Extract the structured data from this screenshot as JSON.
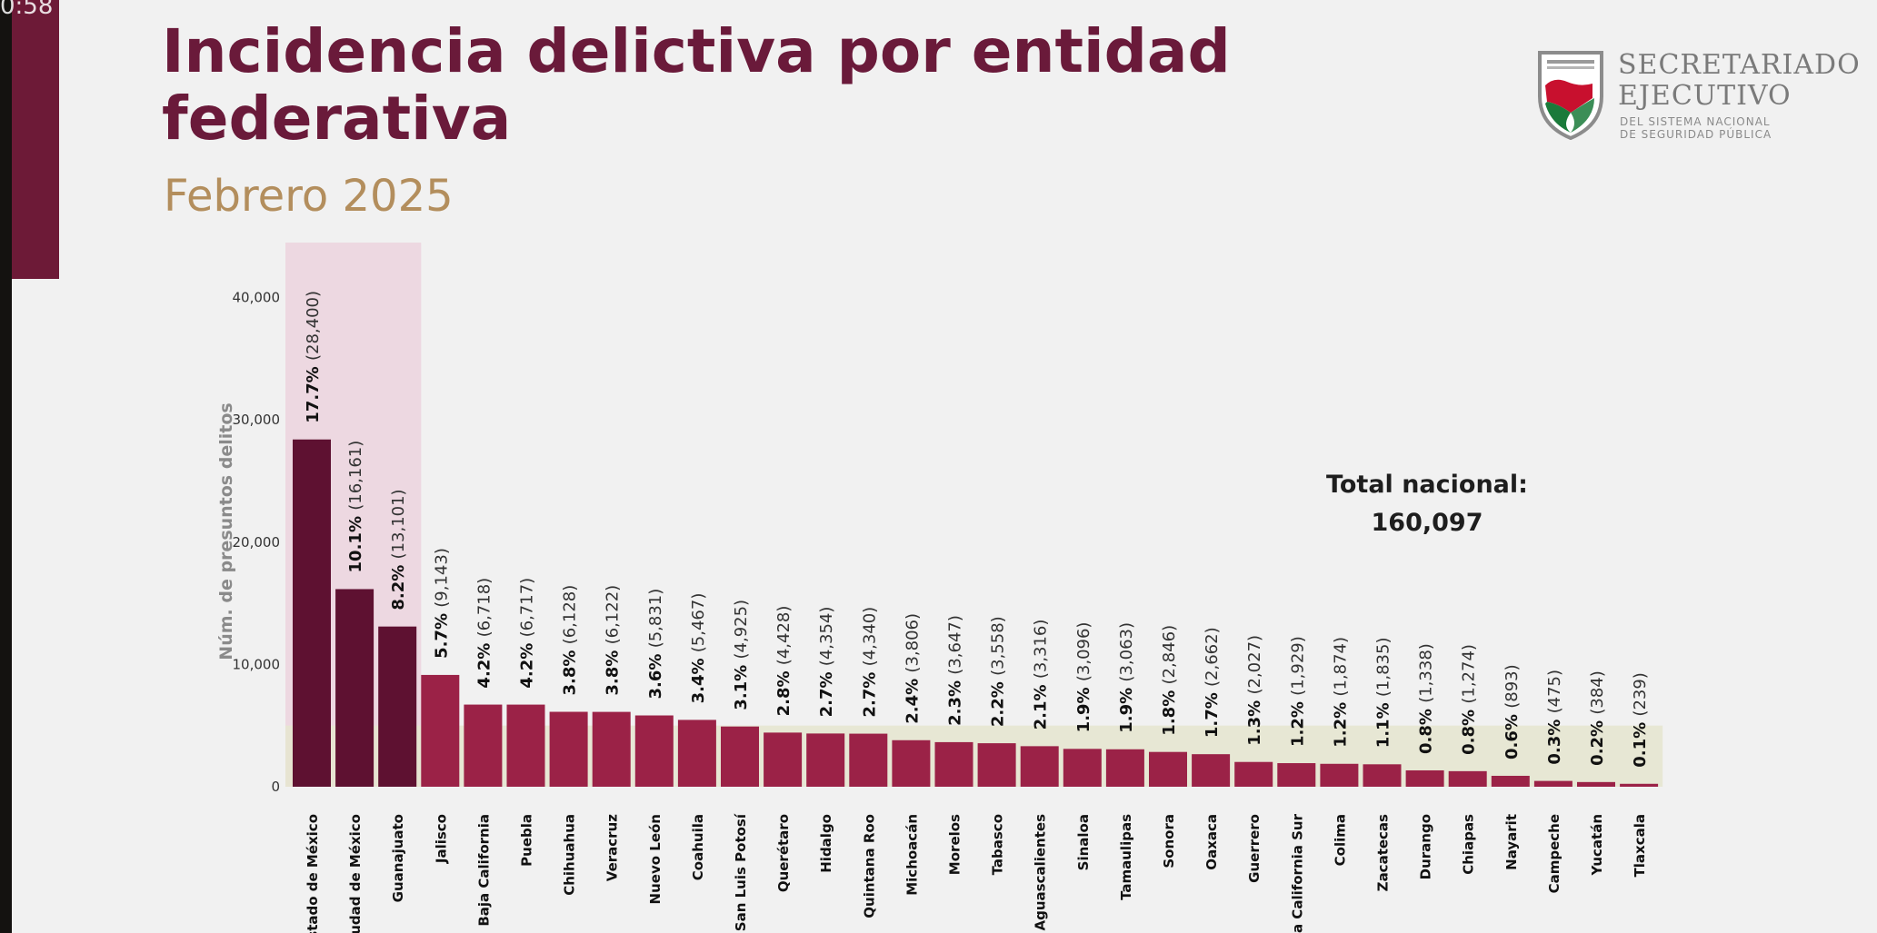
{
  "status_bar": {
    "time": "0:58"
  },
  "header": {
    "title": "Incidencia delictiva por entidad federativa",
    "subtitle": "Febrero 2025"
  },
  "logo": {
    "name_line1": "SECRETARIADO",
    "name_line2": "EJECUTIVO",
    "sub_line1": "DEL SISTEMA NACIONAL",
    "sub_line2": "DE SEGURIDAD PÚBLICA",
    "icon": "seal-icon"
  },
  "total": {
    "label": "Total nacional:",
    "value": "160,097"
  },
  "colors": {
    "top3_bar": "#5e1131",
    "bar": "#9b2247",
    "top3_highlight": "#ecd3de",
    "low_highlight": "#e6e6d0",
    "title": "#6a1a3a",
    "subtitle": "#b38e5d",
    "sidebar": "#6d1a37"
  },
  "chart_data": {
    "type": "bar",
    "ylabel": "Núm. de presuntos delitos",
    "ylim": [
      0,
      44500
    ],
    "yticks": [
      0,
      10000,
      20000,
      30000,
      40000
    ],
    "ytick_labels": [
      "0",
      "10,000",
      "20,000",
      "30,000",
      "40,000"
    ],
    "categories": [
      "Estado de México",
      "Ciudad de México",
      "Guanajuato",
      "Jalisco",
      "Baja California",
      "Puebla",
      "Chihuahua",
      "Veracruz",
      "Nuevo León",
      "Coahuila",
      "San Luis Potosí",
      "Querétaro",
      "Hidalgo",
      "Quintana Roo",
      "Michoacán",
      "Morelos",
      "Tabasco",
      "Aguascalientes",
      "Sinaloa",
      "Tamaulipas",
      "Sonora",
      "Oaxaca",
      "Guerrero",
      "aja California Sur",
      "Colima",
      "Zacatecas",
      "Durango",
      "Chiapas",
      "Nayarit",
      "Campeche",
      "Yucatán",
      "Tlaxcala"
    ],
    "values": [
      28400,
      16161,
      13101,
      9143,
      6718,
      6717,
      6128,
      6122,
      5831,
      5467,
      4925,
      4428,
      4354,
      4340,
      3806,
      3647,
      3558,
      3316,
      3096,
      3063,
      2846,
      2662,
      2027,
      1929,
      1874,
      1835,
      1338,
      1274,
      893,
      475,
      384,
      239
    ],
    "percent_labels": [
      "17.7%",
      "10.1%",
      "8.2%",
      "5.7%",
      "4.2%",
      "4.2%",
      "3.8%",
      "3.8%",
      "3.6%",
      "3.4%",
      "3.1%",
      "2.8%",
      "2.7%",
      "2.7%",
      "2.4%",
      "2.3%",
      "2.2%",
      "2.1%",
      "1.9%",
      "1.9%",
      "1.8%",
      "1.7%",
      "1.3%",
      "1.2%",
      "1.2%",
      "1.1%",
      "0.8%",
      "0.8%",
      "0.6%",
      "0.3%",
      "0.2%",
      "0.1%"
    ],
    "count_labels": [
      "(28,400)",
      "(16,161)",
      "(13,101)",
      "(9,143)",
      "(6,718)",
      "(6,717)",
      "(6,128)",
      "(6,122)",
      "(5,831)",
      "(5,467)",
      "(4,925)",
      "(4,428)",
      "(4,354)",
      "(4,340)",
      "(3,806)",
      "(3,647)",
      "(3,558)",
      "(3,316)",
      "(3,096)",
      "(3,063)",
      "(2,846)",
      "(2,662)",
      "(2,027)",
      "(1,929)",
      "(1,874)",
      "(1,835)",
      "(1,338)",
      "(1,274)",
      "(893)",
      "(475)",
      "(384)",
      "(239)"
    ],
    "highlight_top_count": 3,
    "low_band_value": 5000,
    "grid": false,
    "legend": "none"
  }
}
